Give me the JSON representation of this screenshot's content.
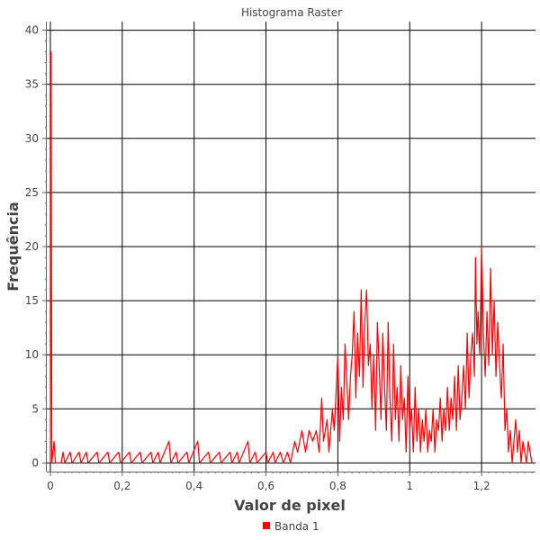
{
  "chart_data": {
    "type": "line",
    "title": "Histograma Raster",
    "xlabel": "Valor de pixel",
    "ylabel": "Frequência",
    "xlim": [
      -0.01,
      1.35
    ],
    "ylim": [
      -0.8,
      40.8
    ],
    "x_ticks": [
      {
        "value": 0,
        "label": "0"
      },
      {
        "value": 0.2,
        "label": "0,2"
      },
      {
        "value": 0.4,
        "label": "0,4"
      },
      {
        "value": 0.6,
        "label": "0,6"
      },
      {
        "value": 0.8,
        "label": "0,8"
      },
      {
        "value": 1.0,
        "label": "1"
      },
      {
        "value": 1.2,
        "label": "1,2"
      }
    ],
    "y_ticks": [
      {
        "value": 0,
        "label": "0"
      },
      {
        "value": 5,
        "label": "5"
      },
      {
        "value": 10,
        "label": "10"
      },
      {
        "value": 15,
        "label": "15"
      },
      {
        "value": 20,
        "label": "20"
      },
      {
        "value": 25,
        "label": "25"
      },
      {
        "value": 30,
        "label": "30"
      },
      {
        "value": 35,
        "label": "35"
      },
      {
        "value": 40,
        "label": "40"
      }
    ],
    "grid": true,
    "legend_position": "bottom-center",
    "series": [
      {
        "name": "Banda 1",
        "color": "#ff0000",
        "points": [
          [
            0.0,
            0
          ],
          [
            0.002,
            38
          ],
          [
            0.004,
            0
          ],
          [
            0.01,
            2
          ],
          [
            0.014,
            0
          ],
          [
            0.03,
            0
          ],
          [
            0.035,
            1
          ],
          [
            0.04,
            0
          ],
          [
            0.055,
            1
          ],
          [
            0.06,
            0
          ],
          [
            0.08,
            1
          ],
          [
            0.085,
            0
          ],
          [
            0.1,
            1
          ],
          [
            0.105,
            0
          ],
          [
            0.13,
            1
          ],
          [
            0.135,
            0
          ],
          [
            0.16,
            1
          ],
          [
            0.165,
            0
          ],
          [
            0.19,
            1
          ],
          [
            0.195,
            0
          ],
          [
            0.22,
            1
          ],
          [
            0.225,
            0
          ],
          [
            0.25,
            1
          ],
          [
            0.255,
            0
          ],
          [
            0.28,
            1
          ],
          [
            0.285,
            0
          ],
          [
            0.3,
            1
          ],
          [
            0.305,
            0
          ],
          [
            0.33,
            2
          ],
          [
            0.335,
            0
          ],
          [
            0.35,
            1
          ],
          [
            0.355,
            0
          ],
          [
            0.38,
            1
          ],
          [
            0.385,
            0
          ],
          [
            0.41,
            2
          ],
          [
            0.415,
            0
          ],
          [
            0.44,
            1
          ],
          [
            0.445,
            0
          ],
          [
            0.47,
            1
          ],
          [
            0.475,
            0
          ],
          [
            0.5,
            1
          ],
          [
            0.505,
            0
          ],
          [
            0.52,
            1
          ],
          [
            0.525,
            0
          ],
          [
            0.55,
            2
          ],
          [
            0.555,
            0
          ],
          [
            0.57,
            1
          ],
          [
            0.575,
            0
          ],
          [
            0.6,
            1
          ],
          [
            0.605,
            0
          ],
          [
            0.62,
            1
          ],
          [
            0.625,
            0
          ],
          [
            0.64,
            1
          ],
          [
            0.648,
            0
          ],
          [
            0.66,
            1
          ],
          [
            0.668,
            0
          ],
          [
            0.68,
            2
          ],
          [
            0.688,
            1
          ],
          [
            0.7,
            3
          ],
          [
            0.71,
            1
          ],
          [
            0.72,
            3
          ],
          [
            0.73,
            2
          ],
          [
            0.74,
            3
          ],
          [
            0.748,
            1
          ],
          [
            0.755,
            6
          ],
          [
            0.76,
            2
          ],
          [
            0.77,
            4
          ],
          [
            0.775,
            1
          ],
          [
            0.785,
            5
          ],
          [
            0.79,
            3
          ],
          [
            0.8,
            10
          ],
          [
            0.805,
            2
          ],
          [
            0.81,
            7
          ],
          [
            0.815,
            4
          ],
          [
            0.82,
            11
          ],
          [
            0.83,
            4
          ],
          [
            0.835,
            8
          ],
          [
            0.84,
            10
          ],
          [
            0.845,
            14
          ],
          [
            0.85,
            6
          ],
          [
            0.855,
            12
          ],
          [
            0.86,
            8
          ],
          [
            0.865,
            16
          ],
          [
            0.87,
            7
          ],
          [
            0.875,
            13
          ],
          [
            0.88,
            16
          ],
          [
            0.885,
            9
          ],
          [
            0.89,
            11
          ],
          [
            0.895,
            5
          ],
          [
            0.9,
            10
          ],
          [
            0.905,
            3
          ],
          [
            0.91,
            13
          ],
          [
            0.915,
            9
          ],
          [
            0.92,
            4
          ],
          [
            0.925,
            12
          ],
          [
            0.93,
            7
          ],
          [
            0.935,
            3
          ],
          [
            0.94,
            13
          ],
          [
            0.945,
            6
          ],
          [
            0.95,
            2
          ],
          [
            0.955,
            11
          ],
          [
            0.96,
            4
          ],
          [
            0.965,
            7
          ],
          [
            0.97,
            2
          ],
          [
            0.975,
            9
          ],
          [
            0.98,
            4
          ],
          [
            0.985,
            6
          ],
          [
            0.99,
            1
          ],
          [
            0.995,
            8
          ],
          [
            1.0,
            3
          ],
          [
            1.005,
            5
          ],
          [
            1.01,
            1
          ],
          [
            1.015,
            7
          ],
          [
            1.02,
            2
          ],
          [
            1.025,
            5
          ],
          [
            1.03,
            1
          ],
          [
            1.035,
            4
          ],
          [
            1.04,
            2
          ],
          [
            1.045,
            5
          ],
          [
            1.05,
            1
          ],
          [
            1.055,
            3
          ],
          [
            1.06,
            2
          ],
          [
            1.065,
            5
          ],
          [
            1.07,
            1
          ],
          [
            1.075,
            4
          ],
          [
            1.08,
            3
          ],
          [
            1.085,
            6
          ],
          [
            1.09,
            2
          ],
          [
            1.095,
            5
          ],
          [
            1.1,
            3
          ],
          [
            1.105,
            7
          ],
          [
            1.11,
            3
          ],
          [
            1.115,
            6
          ],
          [
            1.12,
            4
          ],
          [
            1.125,
            8
          ],
          [
            1.13,
            3
          ],
          [
            1.135,
            9
          ],
          [
            1.14,
            4
          ],
          [
            1.145,
            6
          ],
          [
            1.15,
            9
          ],
          [
            1.155,
            5
          ],
          [
            1.16,
            12
          ],
          [
            1.165,
            6
          ],
          [
            1.17,
            10
          ],
          [
            1.175,
            12
          ],
          [
            1.18,
            8
          ],
          [
            1.183,
            19
          ],
          [
            1.187,
            11
          ],
          [
            1.19,
            14
          ],
          [
            1.195,
            10
          ],
          [
            1.2,
            20
          ],
          [
            1.205,
            12
          ],
          [
            1.21,
            8
          ],
          [
            1.215,
            14
          ],
          [
            1.22,
            9
          ],
          [
            1.225,
            18
          ],
          [
            1.23,
            10
          ],
          [
            1.235,
            15
          ],
          [
            1.24,
            8
          ],
          [
            1.245,
            13
          ],
          [
            1.25,
            9
          ],
          [
            1.255,
            6
          ],
          [
            1.26,
            11
          ],
          [
            1.265,
            3
          ],
          [
            1.27,
            5
          ],
          [
            1.275,
            1
          ],
          [
            1.28,
            3
          ],
          [
            1.285,
            0
          ],
          [
            1.29,
            2
          ],
          [
            1.295,
            4
          ],
          [
            1.3,
            1
          ],
          [
            1.305,
            3
          ],
          [
            1.31,
            0
          ],
          [
            1.315,
            2
          ],
          [
            1.32,
            1
          ],
          [
            1.325,
            0
          ],
          [
            1.33,
            2
          ],
          [
            1.335,
            1
          ],
          [
            1.34,
            0
          ]
        ]
      }
    ]
  }
}
